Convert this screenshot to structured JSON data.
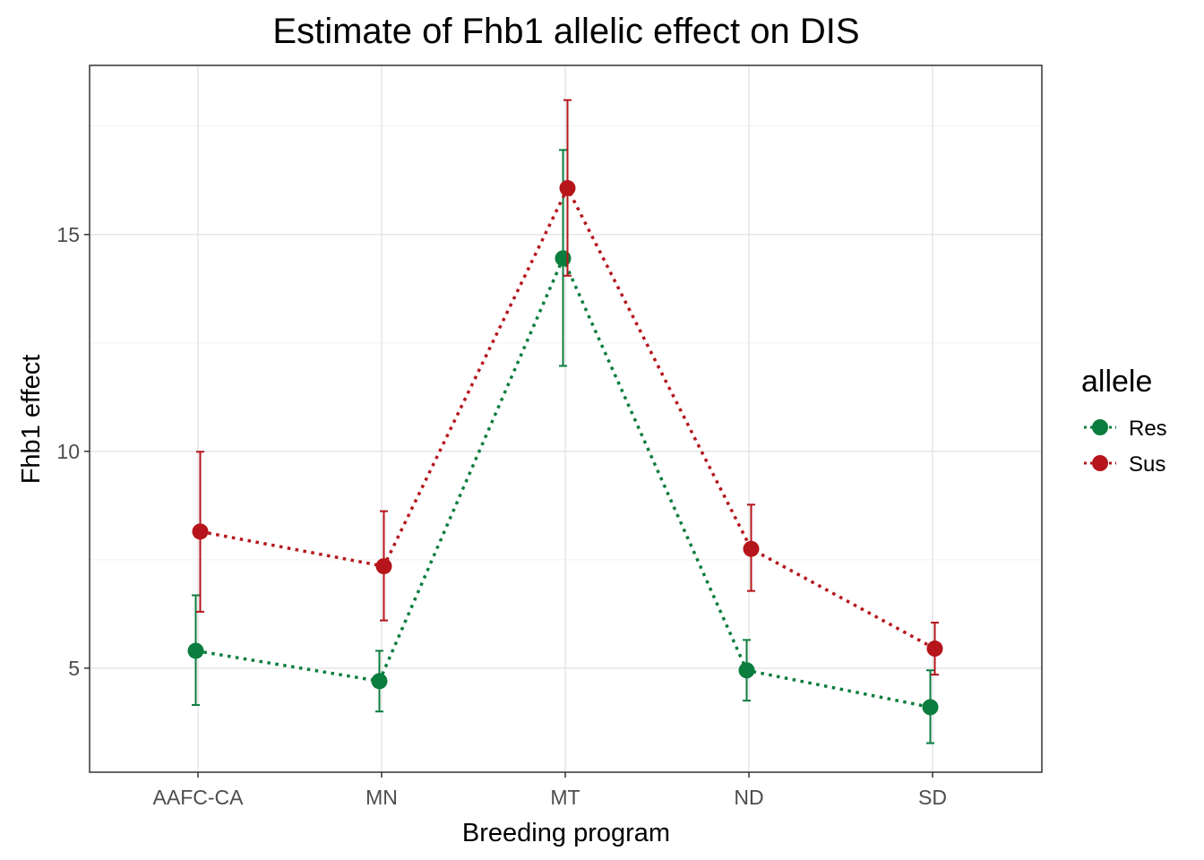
{
  "chart_data": {
    "type": "line",
    "title": "Estimate of Fhb1 allelic effect on DIS",
    "xlabel": "Breeding program",
    "ylabel": "Fhb1 effect",
    "categories": [
      "AAFC-CA",
      "MN",
      "MT",
      "ND",
      "SD"
    ],
    "ylim": [
      2.6,
      18.9
    ],
    "yticks": [
      5,
      10,
      15
    ],
    "grid": true,
    "legend": {
      "title": "allele",
      "position": "right"
    },
    "series": [
      {
        "name": "Res",
        "color": "#0b7d3e",
        "values": [
          5.4,
          4.7,
          14.45,
          4.95,
          4.1
        ],
        "lower": [
          4.15,
          4.0,
          11.97,
          4.25,
          3.27
        ],
        "upper": [
          6.68,
          5.4,
          16.95,
          5.65,
          4.95
        ]
      },
      {
        "name": "Sus",
        "color": "#b5151b",
        "values": [
          8.15,
          7.35,
          16.07,
          7.75,
          5.45
        ],
        "lower": [
          6.3,
          6.1,
          14.05,
          6.78,
          4.85
        ],
        "upper": [
          9.99,
          8.62,
          18.1,
          8.77,
          6.05
        ]
      }
    ]
  }
}
